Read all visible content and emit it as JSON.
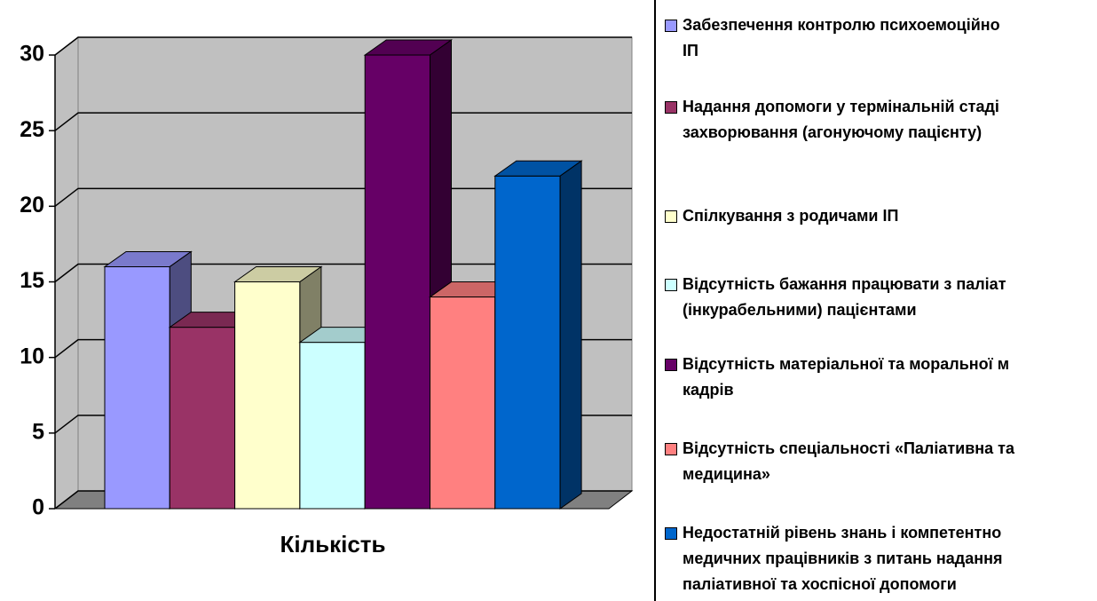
{
  "chart_data": {
    "type": "bar3d",
    "categories": [
      "Кількість"
    ],
    "ylim": [
      0,
      30
    ],
    "yticks": [
      0,
      5,
      10,
      15,
      20,
      25,
      30
    ],
    "grid": true,
    "series": [
      {
        "name": "Забезпечення контролю психоемоційно\nІП",
        "color": "#9999ff",
        "values": [
          16
        ]
      },
      {
        "name": "Надання допомоги у термінальній стаді\nзахворювання (агонуючому пацієнту)",
        "color": "#993366",
        "values": [
          12
        ]
      },
      {
        "name": "Спілкування з родичами ІП",
        "color": "#ffffcc",
        "values": [
          15
        ]
      },
      {
        "name": "Відсутність бажання працювати з паліат\n(інкурабельними) пацієнтами",
        "color": "#ccffff",
        "values": [
          11
        ]
      },
      {
        "name": "Відсутність матеріальної та моральної м\nкадрів",
        "color": "#660066",
        "values": [
          30
        ]
      },
      {
        "name": "Відсутність спеціальності «Паліативна та\nмедицина»",
        "color": "#ff8080",
        "values": [
          14
        ]
      },
      {
        "name": "Недостатній рівень знань і компетентно\nмедичних працівників з питань надання\nпаліативної та хоспісної допомоги",
        "color": "#0066cc",
        "values": [
          22
        ]
      }
    ]
  }
}
